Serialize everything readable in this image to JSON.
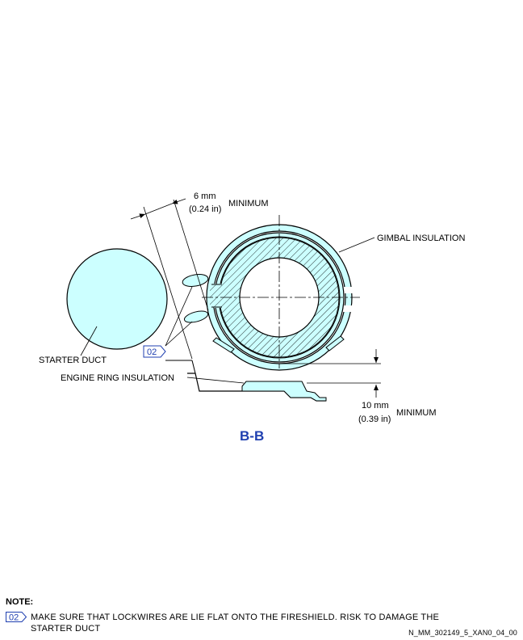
{
  "figure": {
    "view_label": "B-B",
    "labels": {
      "clearance_top_mm": "6 mm",
      "clearance_top_in": "(0.24 in)",
      "clearance_top_minimum": "MINIMUM",
      "gimbal_insulation": "GIMBAL INSULATION",
      "starter_duct": "STARTER DUCT",
      "engine_ring_insulation": "ENGINE RING INSULATION",
      "clearance_bottom_mm": "10 mm",
      "clearance_bottom_in": "(0.39 in)",
      "clearance_bottom_minimum": "MINIMUM",
      "callout": "02"
    },
    "colors": {
      "fill": "#ccffff",
      "line": "#000000",
      "callout": "#1f3fb0"
    }
  },
  "note": {
    "title": "NOTE:",
    "callout": "02",
    "text_line1": "MAKE SURE THAT LOCKWIRES ARE LIE FLAT ONTO THE FIRESHIELD. RISK TO DAMAGE THE",
    "text_line2": "STARTER DUCT"
  },
  "reference": "N_MM_302149_5_XAN0_04_00"
}
